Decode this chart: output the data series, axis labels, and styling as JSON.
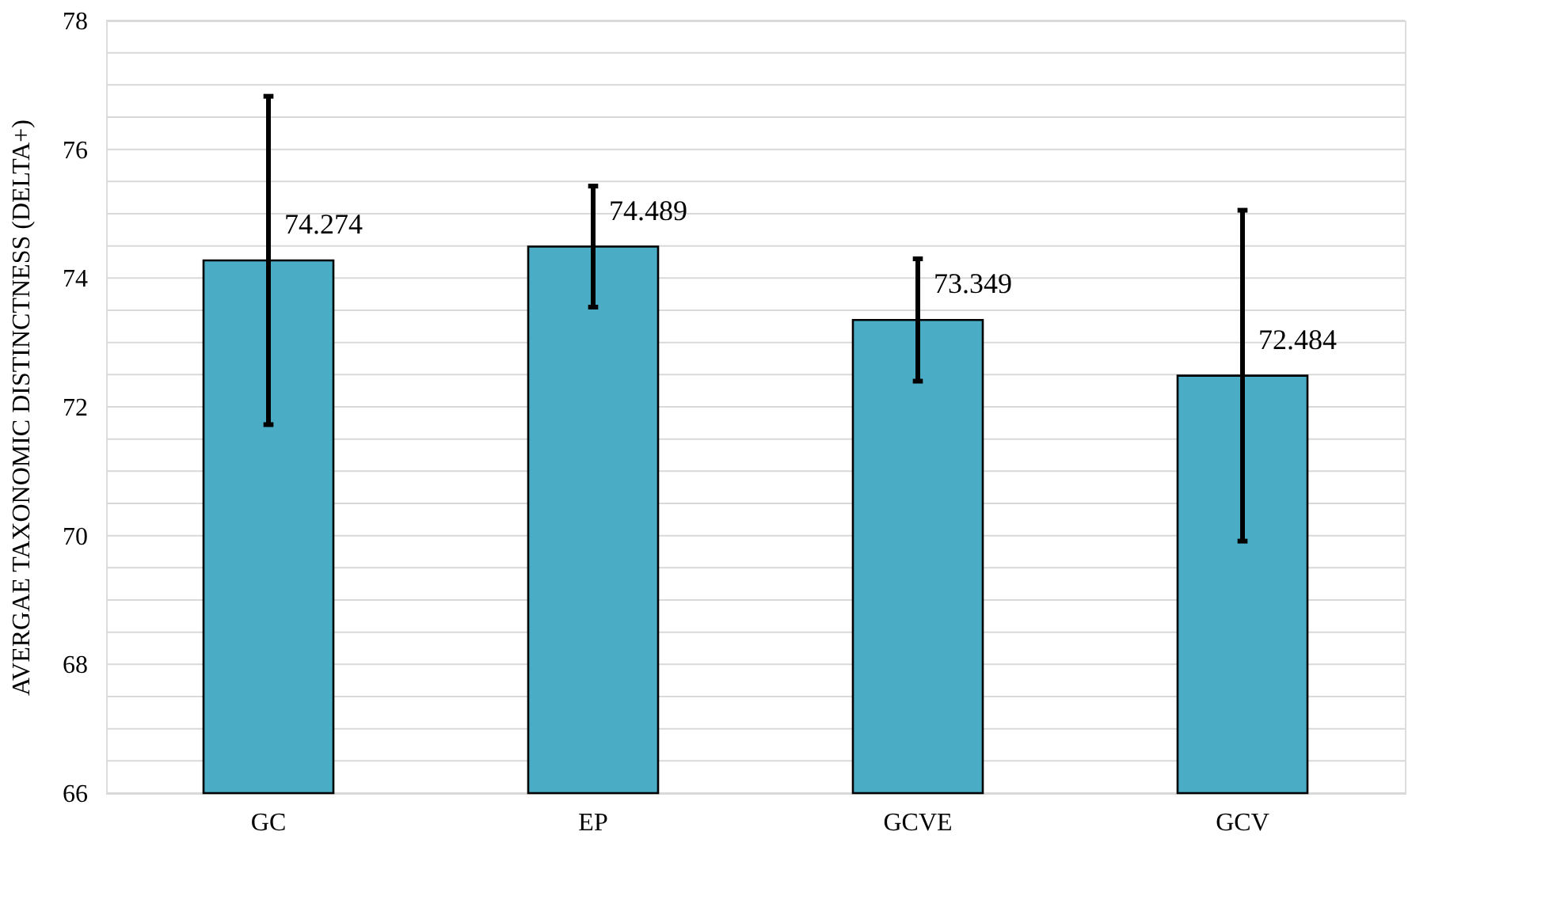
{
  "chart_data": {
    "type": "bar",
    "ylabel": "AVERGAE TAXONOMIC DISTINCTNESS (DELTA+)",
    "categories": [
      "GC",
      "EP",
      "GCVE",
      "GCV"
    ],
    "values": [
      74.274,
      74.489,
      73.349,
      72.484
    ],
    "errors": [
      2.55,
      0.94,
      0.95,
      2.57
    ],
    "color": "#4bacc6",
    "data_labels": true,
    "ylim": [
      66,
      78
    ],
    "yticks": [
      66,
      {
        "value": 66.5,
        "label": null
      },
      {
        "value": 67,
        "label": null
      },
      {
        "value": 67.5,
        "label": null
      },
      68,
      {
        "value": 68.5,
        "label": null
      },
      {
        "value": 69,
        "label": null
      },
      {
        "value": 69.5,
        "label": null
      },
      70,
      {
        "value": 70.5,
        "label": null
      },
      {
        "value": 71,
        "label": null
      },
      {
        "value": 71.5,
        "label": null
      },
      72,
      {
        "value": 72.5,
        "label": null
      },
      {
        "value": 73,
        "label": null
      },
      {
        "value": 73.5,
        "label": null
      },
      74,
      {
        "value": 74.5,
        "label": null
      },
      {
        "value": 75,
        "label": null
      },
      {
        "value": 75.5,
        "label": null
      },
      76,
      {
        "value": 76.5,
        "label": null
      },
      {
        "value": 77,
        "label": null
      },
      {
        "value": 77.5,
        "label": null
      },
      78
    ],
    "grid": "y"
  }
}
